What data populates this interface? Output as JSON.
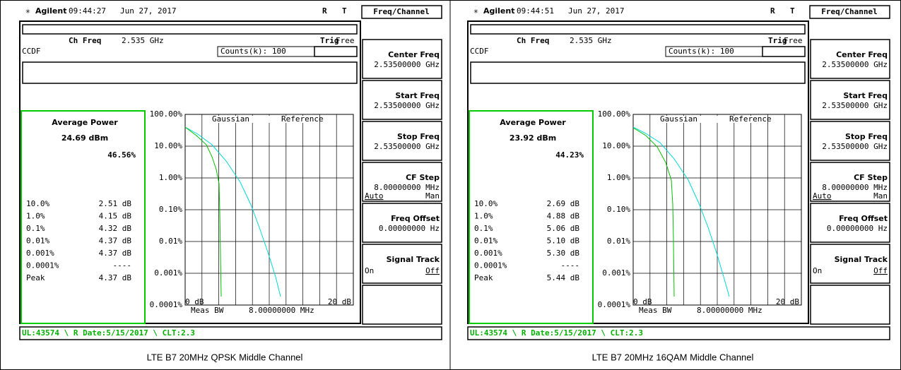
{
  "panels": [
    {
      "header": {
        "brand": "Agilent",
        "time": "09:44:27",
        "date": "Jun 27, 2017",
        "r": "R",
        "t": "T"
      },
      "menu_title": "Freq/Channel",
      "ch_freq_label": "Ch Freq",
      "ch_freq_value": "2.535 GHz",
      "trig_label": "Trig",
      "trig_value": "Free",
      "mode": "CCDF",
      "counts": "Counts(k): 100",
      "average_power": {
        "title": "Average Power",
        "value": "24.69 dBm",
        "percent": "46.56%"
      },
      "stats": [
        [
          "10.0%",
          "2.51 dB"
        ],
        [
          "1.0%",
          "4.15 dB"
        ],
        [
          "0.1%",
          "4.32 dB"
        ],
        [
          "0.01%",
          "4.37 dB"
        ],
        [
          "0.001%",
          "4.37 dB"
        ],
        [
          "0.0001%",
          "----"
        ],
        [
          "Peak",
          "4.37 dB"
        ]
      ],
      "y_labels": [
        "100.00%",
        "10.00%",
        "1.00%",
        "0.10%",
        "0.01%",
        "0.001%",
        "0.0001%"
      ],
      "legend": [
        "Gaussian",
        "Reference"
      ],
      "x_start": "0 dB",
      "x_end": "20 dB",
      "meas_bw_label": "Meas BW",
      "meas_bw_value": "8.00000000 MHz",
      "softkeys": [
        {
          "title": "Center Freq",
          "value": "2.53500000 GHz"
        },
        {
          "title": "Start Freq",
          "value": "2.53500000 GHz"
        },
        {
          "title": "Stop Freq",
          "value": "2.53500000 GHz"
        },
        {
          "title": "CF Step",
          "value": "8.00000000 MHz",
          "options": [
            "Auto",
            "Man"
          ]
        },
        {
          "title": "Freq Offset",
          "value": "0.00000000 Hz"
        },
        {
          "title": "Signal Track",
          "options": [
            "On",
            "Off"
          ]
        }
      ],
      "status": "UL:43574 \\ R Date:5/15/2017 \\ CLT:2.3",
      "caption": "LTE B7 20MHz QPSK Middle Channel"
    },
    {
      "header": {
        "brand": "Agilent",
        "time": "09:44:51",
        "date": "Jun 27, 2017",
        "r": "R",
        "t": "T"
      },
      "menu_title": "Freq/Channel",
      "ch_freq_label": "Ch Freq",
      "ch_freq_value": "2.535 GHz",
      "trig_label": "Trig",
      "trig_value": "Free",
      "mode": "CCDF",
      "counts": "Counts(k): 100",
      "average_power": {
        "title": "Average Power",
        "value": "23.92 dBm",
        "percent": "44.23%"
      },
      "stats": [
        [
          "10.0%",
          "2.69 dB"
        ],
        [
          "1.0%",
          "4.88 dB"
        ],
        [
          "0.1%",
          "5.06 dB"
        ],
        [
          "0.01%",
          "5.10 dB"
        ],
        [
          "0.001%",
          "5.30 dB"
        ],
        [
          "0.0001%",
          "----"
        ],
        [
          "Peak",
          "5.44 dB"
        ]
      ],
      "y_labels": [
        "100.00%",
        "10.00%",
        "1.00%",
        "0.10%",
        "0.01%",
        "0.001%",
        "0.0001%"
      ],
      "legend": [
        "Gaussian",
        "Reference"
      ],
      "x_start": "0 dB",
      "x_end": "20 dB",
      "meas_bw_label": "Meas BW",
      "meas_bw_value": "8.00000000 MHz",
      "softkeys": [
        {
          "title": "Center Freq",
          "value": "2.53500000 GHz"
        },
        {
          "title": "Start Freq",
          "value": "2.53500000 GHz"
        },
        {
          "title": "Stop Freq",
          "value": "2.53500000 GHz"
        },
        {
          "title": "CF Step",
          "value": "8.00000000 MHz",
          "options": [
            "Auto",
            "Man"
          ]
        },
        {
          "title": "Freq Offset",
          "value": "0.00000000 Hz"
        },
        {
          "title": "Signal Track",
          "options": [
            "On",
            "Off"
          ]
        }
      ],
      "status": "UL:43574 \\ R Date:5/15/2017 \\ CLT:2.3",
      "caption": "LTE B7 20MHz 16QAM Middle Channel"
    }
  ]
}
